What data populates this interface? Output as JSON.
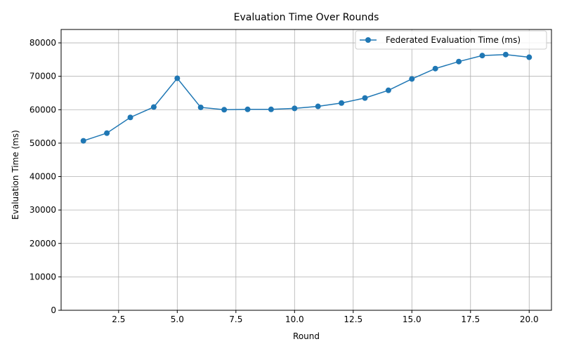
{
  "chart_data": {
    "type": "line",
    "title": "Evaluation Time Over Rounds",
    "xlabel": "Round",
    "ylabel": "Evaluation Time (ms)",
    "xlim": [
      0.05,
      20.95
    ],
    "ylim": [
      0,
      84000
    ],
    "xticks": [
      2.5,
      5.0,
      7.5,
      10.0,
      12.5,
      15.0,
      17.5,
      20.0
    ],
    "xtick_labels": [
      "2.5",
      "5.0",
      "7.5",
      "10.0",
      "12.5",
      "15.0",
      "17.5",
      "20.0"
    ],
    "yticks": [
      0,
      10000,
      20000,
      30000,
      40000,
      50000,
      60000,
      70000,
      80000
    ],
    "ytick_labels": [
      "0",
      "10000",
      "20000",
      "30000",
      "40000",
      "50000",
      "60000",
      "70000",
      "80000"
    ],
    "grid": true,
    "legend_position": "top-right",
    "series": [
      {
        "name": "Federated Evaluation Time (ms)",
        "color": "#1f77b4",
        "marker": "circle",
        "x": [
          1,
          2,
          3,
          4,
          5,
          6,
          7,
          8,
          9,
          10,
          11,
          12,
          13,
          14,
          15,
          16,
          17,
          18,
          19,
          20
        ],
        "y": [
          50700,
          53000,
          57700,
          60800,
          69400,
          60700,
          60000,
          60100,
          60100,
          60400,
          61000,
          62000,
          63500,
          65800,
          69200,
          72300,
          74400,
          76200,
          76500,
          75700
        ]
      }
    ]
  }
}
